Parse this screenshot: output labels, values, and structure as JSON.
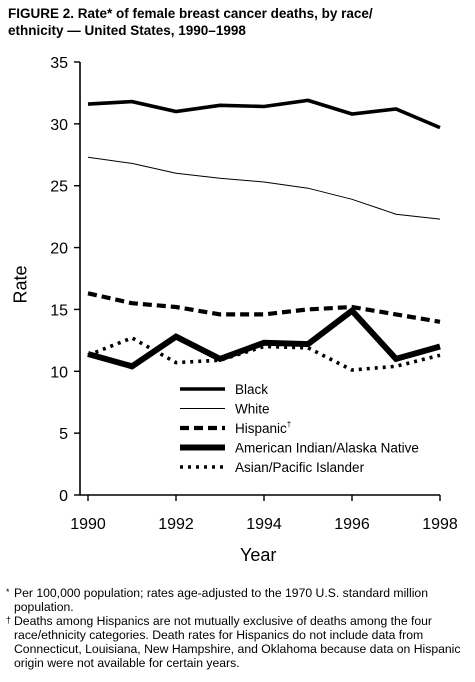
{
  "title_line1": "FIGURE 2. Rate* of female breast cancer deaths, by race/",
  "title_line2": "ethnicity — United States, 1990–1998",
  "footnotes": [
    {
      "mark": "*",
      "text": "Per 100,000 population; rates age-adjusted to the 1970 U.S. standard million population."
    },
    {
      "mark": "†",
      "text": "Deaths among Hispanics are not mutually exclusive of deaths among the four race/ethnicity categories. Death rates for Hispanics do not include data from Connecticut, Louisiana, New Hampshire, and Oklahoma because data on Hispanic origin were not available for certain years."
    }
  ],
  "chart_data": {
    "type": "line",
    "xlabel": "Year",
    "ylabel": "Rate",
    "xlim": [
      1990,
      1998
    ],
    "ylim": [
      0,
      35
    ],
    "x_ticks": [
      1990,
      1992,
      1994,
      1996,
      1998
    ],
    "y_ticks": [
      0,
      5,
      10,
      15,
      20,
      25,
      30,
      35
    ],
    "grid": false,
    "legend_position": "lower-center",
    "x": [
      1990,
      1991,
      1992,
      1993,
      1994,
      1995,
      1996,
      1997,
      1998
    ],
    "series": [
      {
        "name": "Black",
        "style": "thick-solid",
        "values": [
          31.6,
          31.8,
          31.0,
          31.5,
          31.4,
          31.9,
          30.8,
          31.2,
          29.7
        ]
      },
      {
        "name": "White",
        "style": "thin-solid",
        "values": [
          27.3,
          26.8,
          26.0,
          25.6,
          25.3,
          24.8,
          23.9,
          22.7,
          22.3
        ]
      },
      {
        "name": "Hispanic",
        "name_mark": "†",
        "style": "dashed",
        "values": [
          16.3,
          15.5,
          15.2,
          14.6,
          14.6,
          15.0,
          15.2,
          14.6,
          14.0
        ]
      },
      {
        "name": "American Indian/Alaska Native",
        "style": "very-thick-solid",
        "values": [
          11.4,
          10.4,
          12.8,
          11.0,
          12.3,
          12.2,
          14.9,
          11.0,
          12.0
        ]
      },
      {
        "name": "Asian/Pacific Islander",
        "style": "dotted",
        "values": [
          11.3,
          12.7,
          10.7,
          10.9,
          12.0,
          11.9,
          10.1,
          10.4,
          11.3
        ]
      }
    ]
  }
}
